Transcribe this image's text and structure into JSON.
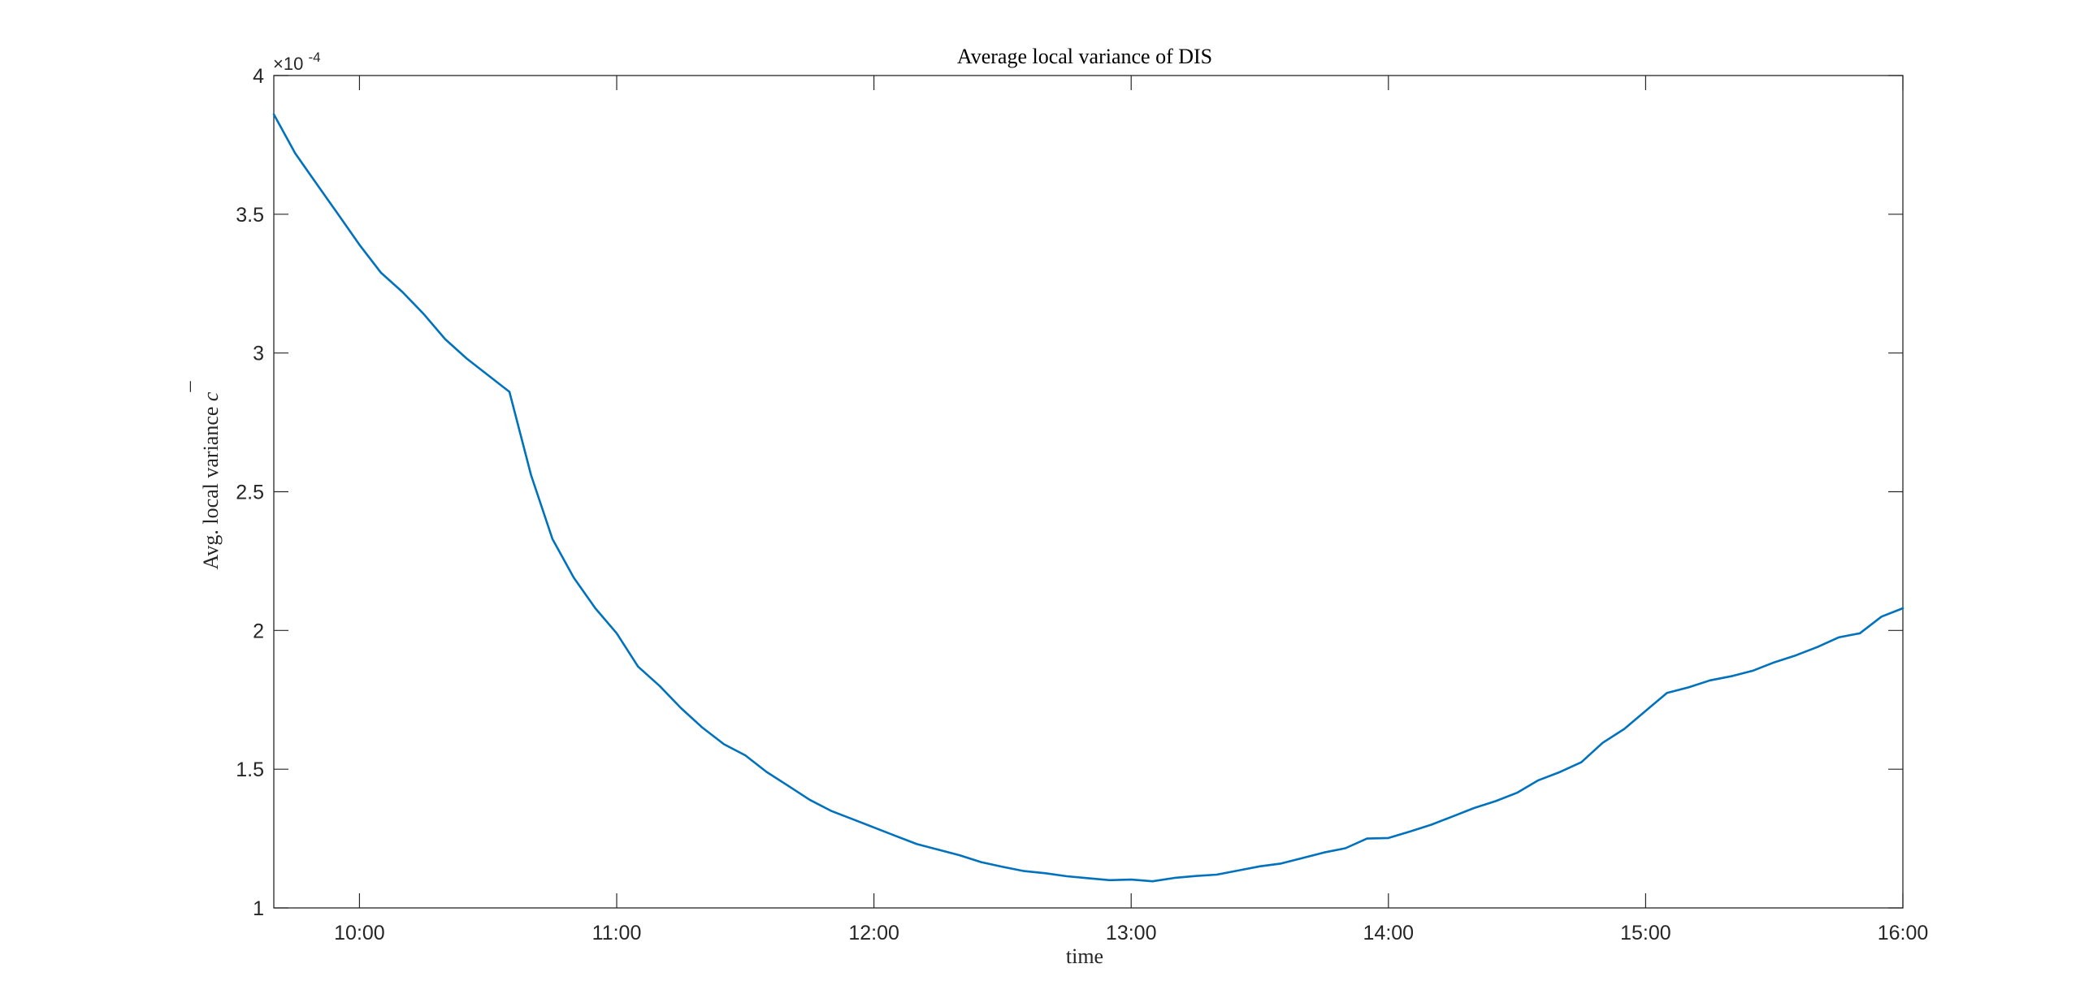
{
  "chart_data": {
    "type": "line",
    "title": "Average local variance of DIS",
    "xlabel": "time",
    "ylabel": "Avg. local variance c̄",
    "ylabel_text": "Avg. local variance",
    "ylabel_symbol": "c",
    "y_multiplier_label": "×10",
    "y_multiplier_exp": "-4",
    "xlim": [
      9.667,
      16.0
    ],
    "ylim": [
      1,
      4
    ],
    "x_ticks": [
      10,
      11,
      12,
      13,
      14,
      15,
      16
    ],
    "x_tick_labels": [
      "10:00",
      "11:00",
      "12:00",
      "13:00",
      "14:00",
      "15:00",
      "16:00"
    ],
    "y_ticks": [
      1,
      1.5,
      2,
      2.5,
      3,
      3.5,
      4
    ],
    "y_tick_labels": [
      "1",
      "1.5",
      "2",
      "2.5",
      "3",
      "3.5",
      "4"
    ],
    "grid": false,
    "series": [
      {
        "name": "DIS",
        "color": "#0072BD",
        "x": [
          9.667,
          9.75,
          9.833,
          9.917,
          10.0,
          10.083,
          10.167,
          10.25,
          10.333,
          10.417,
          10.5,
          10.583,
          10.667,
          10.75,
          10.833,
          10.917,
          11.0,
          11.083,
          11.167,
          11.25,
          11.333,
          11.417,
          11.5,
          11.583,
          11.667,
          11.75,
          11.833,
          11.917,
          12.0,
          12.083,
          12.167,
          12.25,
          12.333,
          12.417,
          12.5,
          12.583,
          12.667,
          12.75,
          12.833,
          12.917,
          13.0,
          13.083,
          13.167,
          13.25,
          13.333,
          13.417,
          13.5,
          13.583,
          13.667,
          13.75,
          13.833,
          13.917,
          14.0,
          14.083,
          14.167,
          14.25,
          14.333,
          14.417,
          14.5,
          14.583,
          14.667,
          14.75,
          14.833,
          14.917,
          15.0,
          15.083,
          15.167,
          15.25,
          15.333,
          15.417,
          15.5,
          15.583,
          15.667,
          15.75,
          15.833,
          15.917,
          16.0
        ],
        "values": [
          3.86,
          3.72,
          3.61,
          3.5,
          3.39,
          3.29,
          3.22,
          3.14,
          3.05,
          2.98,
          2.92,
          2.86,
          2.56,
          2.33,
          2.19,
          2.08,
          1.99,
          1.87,
          1.8,
          1.72,
          1.65,
          1.59,
          1.55,
          1.49,
          1.44,
          1.39,
          1.35,
          1.32,
          1.29,
          1.26,
          1.23,
          1.21,
          1.19,
          1.165,
          1.148,
          1.133,
          1.125,
          1.114,
          1.107,
          1.1,
          1.102,
          1.096,
          1.108,
          1.115,
          1.12,
          1.135,
          1.15,
          1.16,
          1.18,
          1.2,
          1.215,
          1.25,
          1.252,
          1.275,
          1.3,
          1.33,
          1.36,
          1.385,
          1.415,
          1.46,
          1.49,
          1.525,
          1.595,
          1.645,
          1.71,
          1.775,
          1.795,
          1.82,
          1.835,
          1.855,
          1.885,
          1.91,
          1.94,
          1.975,
          1.99,
          2.05,
          2.08
        ]
      }
    ]
  }
}
